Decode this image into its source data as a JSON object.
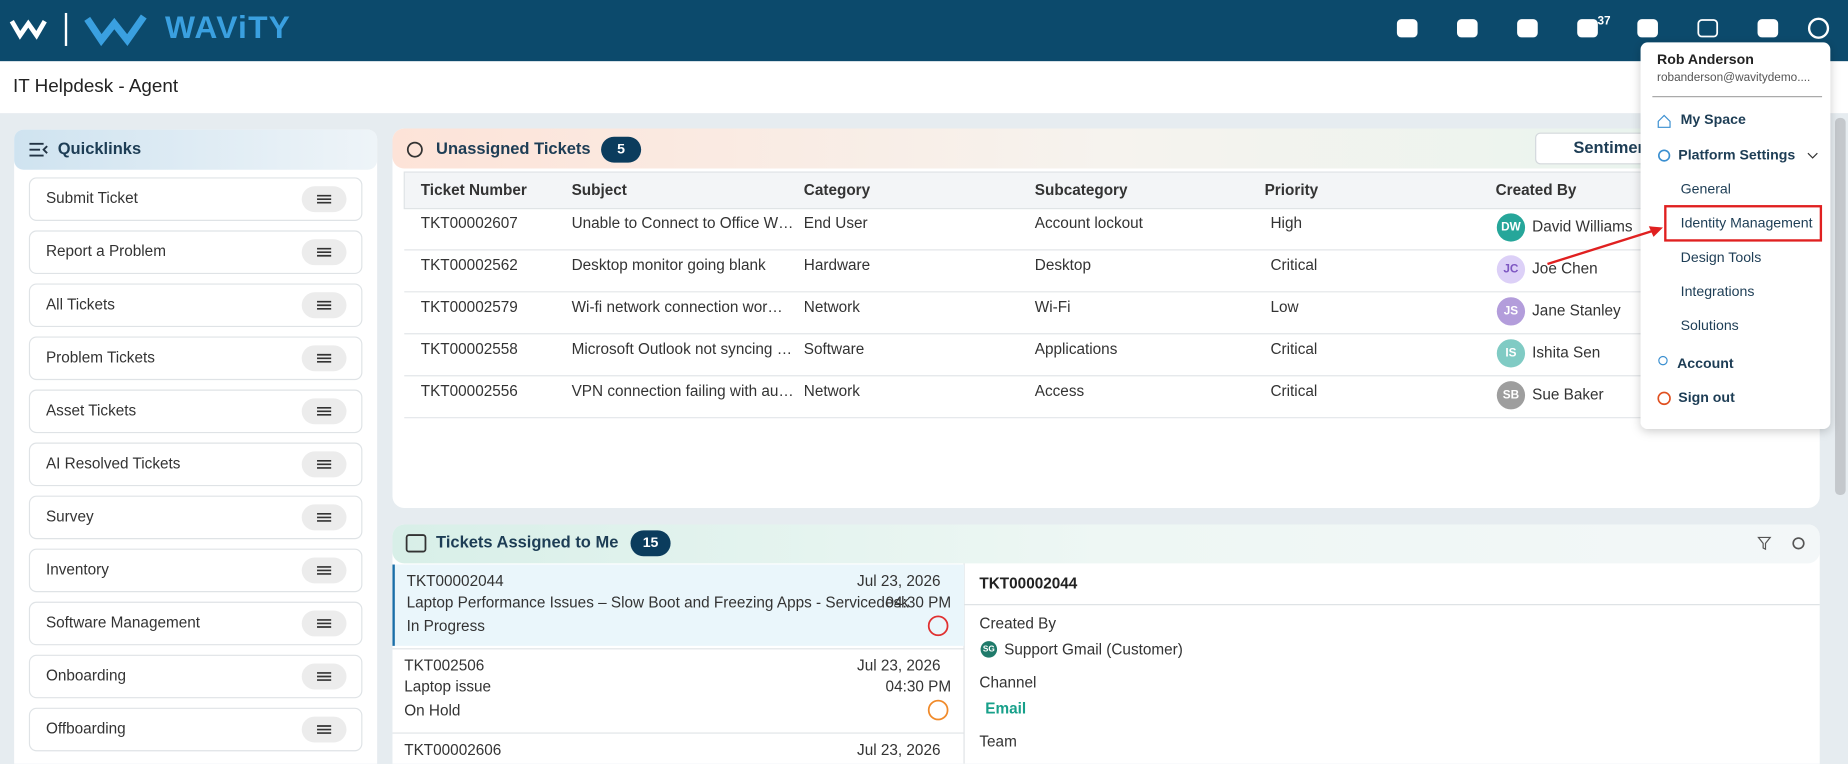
{
  "header": {
    "brand": "WAViTY",
    "notification_count": 37
  },
  "page_title": "IT Helpdesk - Agent",
  "quicklinks": {
    "title": "Quicklinks",
    "items": [
      "Submit Ticket",
      "Report a Problem",
      "All Tickets",
      "Problem Tickets",
      "Asset Tickets",
      "AI Resolved Tickets",
      "Survey",
      "Inventory",
      "Software Management",
      "Onboarding",
      "Offboarding"
    ]
  },
  "unassigned": {
    "title": "Unassigned Tickets",
    "count": 5,
    "sentiment_button": "Sentiment",
    "columns": [
      "Ticket Number",
      "Subject",
      "Category",
      "Subcategory",
      "Priority",
      "Created By"
    ],
    "rows": [
      [
        "TKT00002607",
        "Unable to Connect to Office W…",
        "End User",
        "Account lockout",
        "High",
        "DW",
        "David Williams"
      ],
      [
        "TKT00002562",
        "Desktop monitor going blank",
        "Hardware",
        "Desktop",
        "Critical",
        "JC",
        "Joe Chen"
      ],
      [
        "TKT00002579",
        "Wi-fi network connection wor…",
        "Network",
        "Wi-Fi",
        "Low",
        "JS",
        "Jane Stanley"
      ],
      [
        "TKT00002558",
        "Microsoft Outlook not syncing …",
        "Software",
        "Applications",
        "Critical",
        "IS",
        "Ishita Sen"
      ],
      [
        "TKT00002556",
        "VPN connection failing with au…",
        "Network",
        "Access",
        "Critical",
        "SB",
        "Sue Baker"
      ]
    ]
  },
  "assigned": {
    "title": "Tickets Assigned to Me",
    "count": 15,
    "items": [
      {
        "id": "TKT00002044",
        "subject": "Laptop Performance Issues – Slow Boot and Freezing Apps - Servicedesk",
        "date": "Jul 23, 2026",
        "time": "04:30 PM",
        "status": "In Progress"
      },
      {
        "id": "TKT002506",
        "subject": "Laptop issue",
        "date": "Jul 23, 2026",
        "time": "04:30 PM",
        "status": "On Hold"
      },
      {
        "id": "TKT00002606",
        "date": "Jul 23, 2026"
      }
    ],
    "detail": {
      "id": "TKT00002044",
      "created_by_label": "Created By",
      "customer_initials": "SG",
      "customer": "Support Gmail (Customer)",
      "channel_label": "Channel",
      "channel": "Email",
      "team_label": "Team"
    }
  },
  "user_menu": {
    "name": "Rob Anderson",
    "email": "robanderson@wavitydemo....",
    "my_space": "My Space",
    "platform_settings": "Platform Settings",
    "settings_items": [
      "General",
      "Identity Management",
      "Design Tools",
      "Integrations",
      "Solutions"
    ],
    "account": "Account",
    "sign_out": "Sign out"
  }
}
